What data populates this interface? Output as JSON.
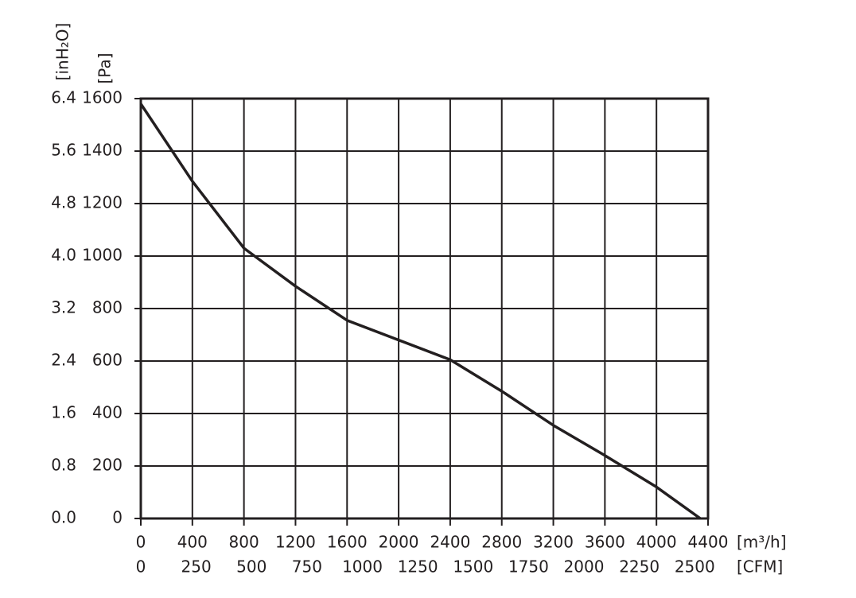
{
  "chart_data": {
    "type": "line",
    "x": [
      0,
      400,
      800,
      1200,
      1600,
      2000,
      2400,
      2800,
      3200,
      3600,
      4000,
      4340
    ],
    "values": [
      1580,
      1285,
      1030,
      885,
      755,
      680,
      605,
      485,
      355,
      240,
      120,
      0
    ],
    "color": "#231f20",
    "xlabel": "[m³/h]",
    "x2label": "[CFM]",
    "ylabel": "[Pa]",
    "y2label": "[inH₂O]",
    "xlim": [
      0,
      4400
    ],
    "xticks": [
      0,
      400,
      800,
      1200,
      1600,
      2000,
      2400,
      2800,
      3200,
      3600,
      4000,
      4400
    ],
    "x2lim": [
      0,
      2560
    ],
    "x2ticks": [
      0,
      250,
      500,
      750,
      1000,
      1250,
      1500,
      1750,
      2000,
      2250,
      2500
    ],
    "ylim": [
      0,
      1600
    ],
    "yticks": [
      0,
      200,
      400,
      600,
      800,
      1000,
      1200,
      1400,
      1600
    ],
    "y2lim": [
      0,
      6.4
    ],
    "y2ticks": [
      {
        "value": 0,
        "label": "0.0"
      },
      0.8,
      1.6,
      2.4,
      3.2,
      {
        "value": 4,
        "label": "4.0"
      },
      4.8,
      5.6,
      6.4
    ],
    "grid": true
  }
}
